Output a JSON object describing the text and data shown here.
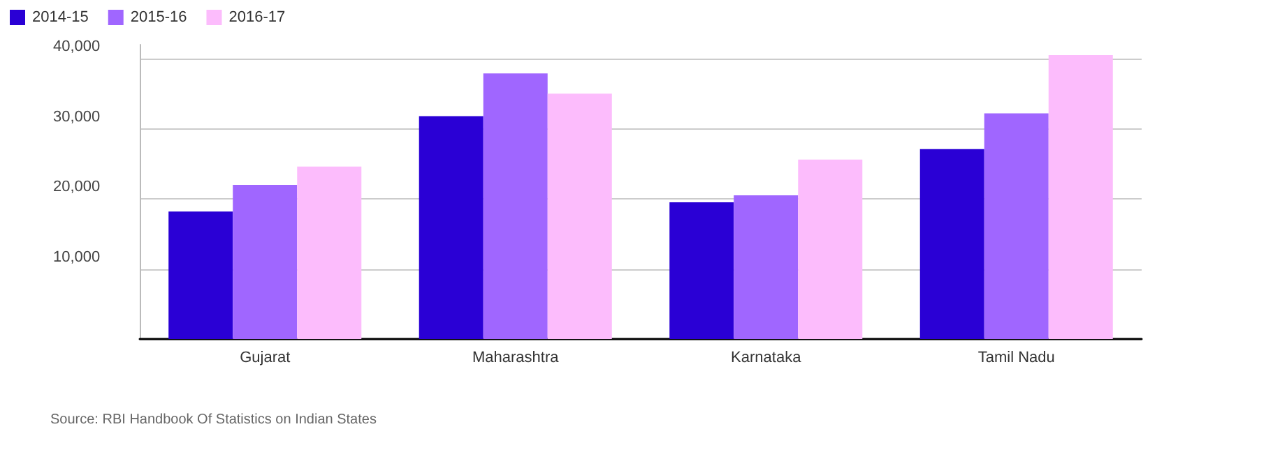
{
  "chart_data": {
    "type": "bar",
    "categories": [
      "Gujarat",
      "Maharashtra",
      "Karnataka",
      "Tamil Nadu"
    ],
    "series": [
      {
        "name": "2014-15",
        "color": "#2a00d5",
        "values": [
          18200,
          31800,
          19500,
          27100
        ]
      },
      {
        "name": "2015-16",
        "color": "#a066ff",
        "values": [
          22000,
          37900,
          20500,
          32200
        ]
      },
      {
        "name": "2016-17",
        "color": "#fcbcfc",
        "values": [
          24600,
          35000,
          25600,
          40500
        ]
      }
    ],
    "ylim": [
      0,
      42000
    ],
    "yticks": [
      {
        "value": 0,
        "label": null
      },
      {
        "value": 10000,
        "label": "10,000"
      },
      {
        "value": 20000,
        "label": "20,000"
      },
      {
        "value": 30000,
        "label": "30,000"
      },
      {
        "value": 40000,
        "label": "40,000"
      }
    ],
    "grid": "y",
    "legend": "top left",
    "annotations": [
      "Source: RBI Handbook Of Statistics on Indian States"
    ]
  }
}
